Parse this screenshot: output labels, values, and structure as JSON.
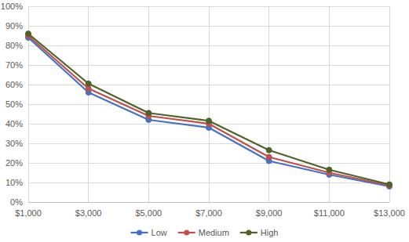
{
  "chart_data": {
    "type": "line",
    "categories": [
      "$1,000",
      "$3,000",
      "$5,000",
      "$7,000",
      "$9,000",
      "$11,000",
      "$13,000"
    ],
    "series": [
      {
        "name": "Low",
        "color": "#4472c4",
        "values": [
          84,
          56,
          42,
          38,
          21,
          14,
          8
        ]
      },
      {
        "name": "Medium",
        "color": "#c0504d",
        "values": [
          85,
          58,
          44,
          40,
          23,
          15,
          8.5
        ]
      },
      {
        "name": "High",
        "color": "#4f6228",
        "values": [
          86,
          60.5,
          45.5,
          41.5,
          26.5,
          16.5,
          9
        ]
      }
    ],
    "ylim": [
      0,
      100
    ],
    "yticks": [
      {
        "value": 0,
        "label": "0%"
      },
      {
        "value": 10,
        "label": "10%"
      },
      {
        "value": 20,
        "label": "20%"
      },
      {
        "value": 30,
        "label": "30%"
      },
      {
        "value": 40,
        "label": "40%"
      },
      {
        "value": 50,
        "label": "50%"
      },
      {
        "value": 60,
        "label": "60%"
      },
      {
        "value": 70,
        "label": "70%"
      },
      {
        "value": 80,
        "label": "80%"
      },
      {
        "value": 90,
        "label": "90%"
      },
      {
        "value": 100,
        "label": "100%"
      }
    ],
    "grid": true,
    "legend": "bottom",
    "marker": "circle"
  }
}
